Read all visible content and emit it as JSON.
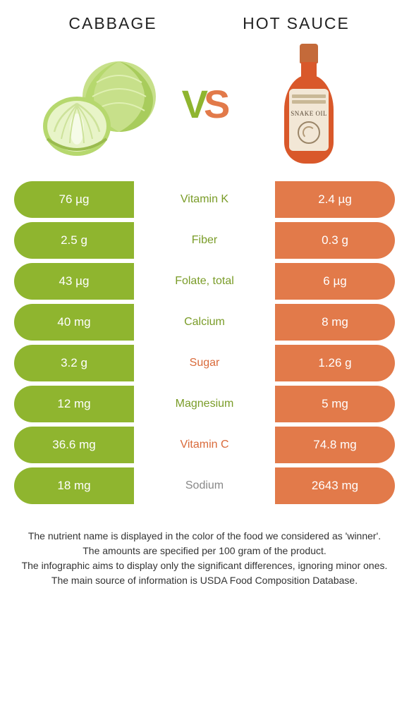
{
  "left_title": "CABBAGE",
  "right_title": "HOT SAUCE",
  "vs_v": "V",
  "vs_s": "S",
  "bottle_brand": "SNAKE OIL",
  "colors": {
    "green": "#8fb52f",
    "orange": "#e27a4a",
    "green_text": "#7a9c28",
    "orange_text": "#d96a3a",
    "neutral_text": "#888888"
  },
  "rows": [
    {
      "left": "76 µg",
      "label": "Vitamin K",
      "right": "2.4 µg",
      "winner": "left"
    },
    {
      "left": "2.5 g",
      "label": "Fiber",
      "right": "0.3 g",
      "winner": "left"
    },
    {
      "left": "43 µg",
      "label": "Folate, total",
      "right": "6 µg",
      "winner": "left"
    },
    {
      "left": "40 mg",
      "label": "Calcium",
      "right": "8 mg",
      "winner": "left"
    },
    {
      "left": "3.2 g",
      "label": "Sugar",
      "right": "1.26 g",
      "winner": "right"
    },
    {
      "left": "12 mg",
      "label": "Magnesium",
      "right": "5 mg",
      "winner": "left"
    },
    {
      "left": "36.6 mg",
      "label": "Vitamin C",
      "right": "74.8 mg",
      "winner": "right"
    },
    {
      "left": "18 mg",
      "label": "Sodium",
      "right": "2643 mg",
      "winner": "neutral"
    }
  ],
  "footer": [
    "The nutrient name is displayed in the color of the food we considered as 'winner'.",
    "The amounts are specified per 100 gram of the product.",
    "The infographic aims to display only the significant differences, ignoring minor ones.",
    "The main source of information is USDA Food Composition Database."
  ]
}
